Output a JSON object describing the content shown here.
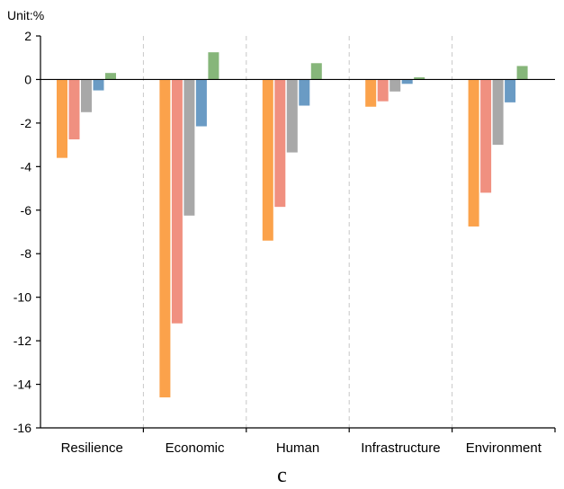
{
  "panel_label": "c",
  "chart_data": {
    "type": "bar",
    "unit_label": "Unit:%",
    "categories": [
      "Resilience",
      "Economic",
      "Human",
      "Infrastructure",
      "Environment"
    ],
    "ylim": [
      -16,
      2
    ],
    "yticks": [
      2,
      0,
      -2,
      -4,
      -6,
      -8,
      -10,
      -12,
      -14,
      -16
    ],
    "grid": false,
    "category_separators": "dashed",
    "series": [
      {
        "color": "#FBA24B",
        "values": [
          -3.6,
          -14.6,
          -7.4,
          -1.25,
          -6.75
        ]
      },
      {
        "color": "#F09080",
        "values": [
          -2.75,
          -11.2,
          -5.85,
          -1.0,
          -5.2
        ]
      },
      {
        "color": "#A8A8A8",
        "values": [
          -1.5,
          -6.25,
          -3.35,
          -0.55,
          -3.0
        ]
      },
      {
        "color": "#6A9BC4",
        "values": [
          -0.5,
          -2.15,
          -1.2,
          -0.2,
          -1.05
        ]
      },
      {
        "color": "#86B67A",
        "values": [
          0.3,
          1.25,
          0.75,
          0.1,
          0.62
        ]
      }
    ]
  }
}
